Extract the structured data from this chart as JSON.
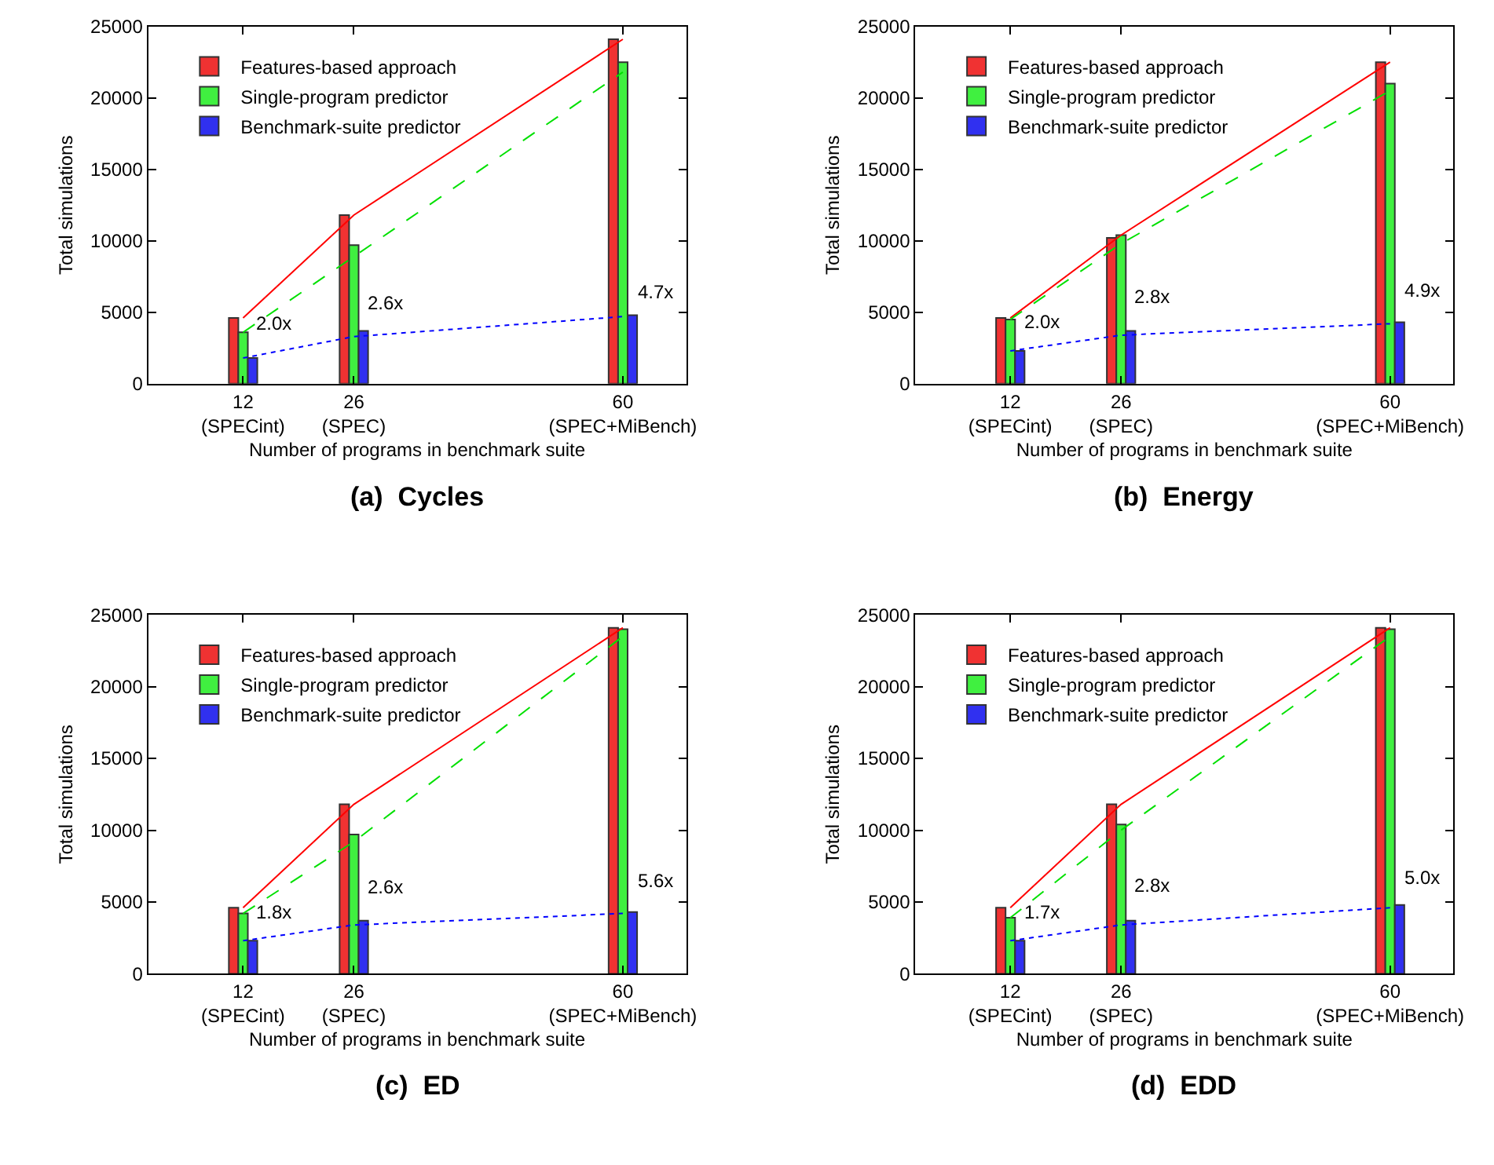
{
  "chart_data": [
    {
      "type": "bar",
      "title": "(a)  Cycles",
      "xlabel": "Number of programs in benchmark suite",
      "ylabel": "Total simulations",
      "x": [
        12,
        26,
        60
      ],
      "xlim": [
        0,
        68
      ],
      "xticks": [
        {
          "value": 12,
          "label": "12\n(SPECint)"
        },
        {
          "value": 26,
          "label": "26\n(SPEC)"
        },
        {
          "value": 60,
          "label": "60\n(SPEC+MiBench)"
        }
      ],
      "ylim": [
        0,
        25000
      ],
      "yticks": [
        0,
        5000,
        10000,
        15000,
        20000,
        25000
      ],
      "legend": "top left",
      "series": [
        {
          "name": "Features-based approach",
          "color": "#f03232",
          "values": [
            4600,
            11800,
            24100
          ]
        },
        {
          "name": "Single-program predictor",
          "color": "#40f040",
          "values": [
            3600,
            9700,
            22500
          ]
        },
        {
          "name": "Benchmark-suite predictor",
          "color": "#3030f0",
          "values": [
            1800,
            3700,
            4800
          ]
        },
        {
          "type": "line",
          "color": "#ff0000",
          "line_style": "solid",
          "values": [
            4600,
            11800,
            24100
          ]
        },
        {
          "type": "line",
          "color": "#00e000",
          "line_style": "dashed",
          "values": [
            3600,
            8900,
            21800
          ]
        },
        {
          "type": "line",
          "color": "#0000ff",
          "line_style": "dotted",
          "values": [
            1800,
            3300,
            4700
          ]
        }
      ],
      "annotations": [
        {
          "text": "2.0x",
          "x": 13.3,
          "y": 3200
        },
        {
          "text": "2.6x",
          "x": 27.3,
          "y": 4700
        },
        {
          "text": "4.7x",
          "x": 61.4,
          "y": 5400
        }
      ]
    },
    {
      "type": "bar",
      "title": "(b)  Energy",
      "xlabel": "Number of programs in benchmark suite",
      "ylabel": "Total simulations",
      "x": [
        12,
        26,
        60
      ],
      "xlim": [
        0,
        68
      ],
      "xticks": [
        {
          "value": 12,
          "label": "12\n(SPECint)"
        },
        {
          "value": 26,
          "label": "26\n(SPEC)"
        },
        {
          "value": 60,
          "label": "60\n(SPEC+MiBench)"
        }
      ],
      "ylim": [
        0,
        25000
      ],
      "yticks": [
        0,
        5000,
        10000,
        15000,
        20000,
        25000
      ],
      "legend": "top left",
      "series": [
        {
          "name": "Features-based approach",
          "color": "#f03232",
          "values": [
            4600,
            10200,
            22500
          ]
        },
        {
          "name": "Single-program predictor",
          "color": "#40f040",
          "values": [
            4500,
            10400,
            21000
          ]
        },
        {
          "name": "Benchmark-suite predictor",
          "color": "#3030f0",
          "values": [
            2300,
            3700,
            4300
          ]
        },
        {
          "type": "line",
          "color": "#ff0000",
          "line_style": "solid",
          "values": [
            4600,
            10400,
            22500
          ]
        },
        {
          "type": "line",
          "color": "#00e000",
          "line_style": "dashed",
          "values": [
            4500,
            9800,
            20500
          ]
        },
        {
          "type": "line",
          "color": "#0000ff",
          "line_style": "dotted",
          "values": [
            2300,
            3400,
            4200
          ]
        }
      ],
      "annotations": [
        {
          "text": "2.0x",
          "x": 13.3,
          "y": 3300
        },
        {
          "text": "2.8x",
          "x": 27.3,
          "y": 5100
        },
        {
          "text": "4.9x",
          "x": 61.4,
          "y": 5500
        }
      ]
    },
    {
      "type": "bar",
      "title": "(c)  ED",
      "xlabel": "Number of programs in benchmark suite",
      "ylabel": "Total simulations",
      "x": [
        12,
        26,
        60
      ],
      "xlim": [
        0,
        68
      ],
      "xticks": [
        {
          "value": 12,
          "label": "12\n(SPECint)"
        },
        {
          "value": 26,
          "label": "26\n(SPEC)"
        },
        {
          "value": 60,
          "label": "60\n(SPEC+MiBench)"
        }
      ],
      "ylim": [
        0,
        25000
      ],
      "yticks": [
        0,
        5000,
        10000,
        15000,
        20000,
        25000
      ],
      "legend": "top left",
      "series": [
        {
          "name": "Features-based approach",
          "color": "#f03232",
          "values": [
            4600,
            11800,
            24100
          ]
        },
        {
          "name": "Single-program predictor",
          "color": "#40f040",
          "values": [
            4200,
            9700,
            24000
          ]
        },
        {
          "name": "Benchmark-suite predictor",
          "color": "#3030f0",
          "values": [
            2300,
            3700,
            4300
          ]
        },
        {
          "type": "line",
          "color": "#ff0000",
          "line_style": "solid",
          "values": [
            4600,
            11800,
            24100
          ]
        },
        {
          "type": "line",
          "color": "#00e000",
          "line_style": "dashed",
          "values": [
            4200,
            9200,
            23500
          ]
        },
        {
          "type": "line",
          "color": "#0000ff",
          "line_style": "dotted",
          "values": [
            2300,
            3400,
            4200
          ]
        }
      ],
      "annotations": [
        {
          "text": "1.8x",
          "x": 13.3,
          "y": 3300
        },
        {
          "text": "2.6x",
          "x": 27.3,
          "y": 5000
        },
        {
          "text": "5.6x",
          "x": 61.4,
          "y": 5500
        }
      ]
    },
    {
      "type": "bar",
      "title": "(d)  EDD",
      "xlabel": "Number of programs in benchmark suite",
      "ylabel": "Total simulations",
      "x": [
        12,
        26,
        60
      ],
      "xlim": [
        0,
        68
      ],
      "xticks": [
        {
          "value": 12,
          "label": "12\n(SPECint)"
        },
        {
          "value": 26,
          "label": "26\n(SPEC)"
        },
        {
          "value": 60,
          "label": "60\n(SPEC+MiBench)"
        }
      ],
      "ylim": [
        0,
        25000
      ],
      "yticks": [
        0,
        5000,
        10000,
        15000,
        20000,
        25000
      ],
      "legend": "top left",
      "series": [
        {
          "name": "Features-based approach",
          "color": "#f03232",
          "values": [
            4600,
            11800,
            24100
          ]
        },
        {
          "name": "Single-program predictor",
          "color": "#40f040",
          "values": [
            3900,
            10400,
            24000
          ]
        },
        {
          "name": "Benchmark-suite predictor",
          "color": "#3030f0",
          "values": [
            2300,
            3700,
            4800
          ]
        },
        {
          "type": "line",
          "color": "#ff0000",
          "line_style": "solid",
          "values": [
            4600,
            11800,
            24100
          ]
        },
        {
          "type": "line",
          "color": "#00e000",
          "line_style": "dashed",
          "values": [
            3900,
            10000,
            23500
          ]
        },
        {
          "type": "line",
          "color": "#0000ff",
          "line_style": "dotted",
          "values": [
            2300,
            3400,
            4600
          ]
        }
      ],
      "annotations": [
        {
          "text": "1.7x",
          "x": 13.3,
          "y": 3300
        },
        {
          "text": "2.8x",
          "x": 27.3,
          "y": 5200
        },
        {
          "text": "5.0x",
          "x": 61.4,
          "y": 5700
        }
      ]
    }
  ]
}
